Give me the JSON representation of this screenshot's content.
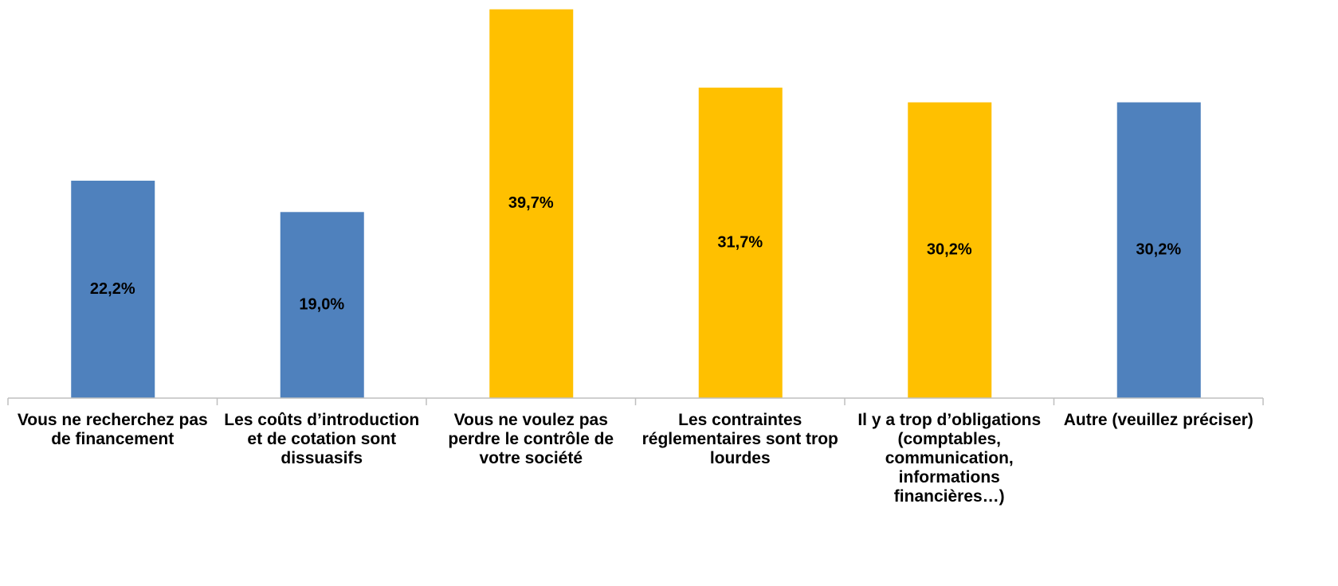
{
  "chart_data": {
    "type": "bar",
    "categories": [
      "Vous ne recherchez pas de financement",
      "Les coûts d’introduction et de cotation sont dissuasifs",
      "Vous ne voulez pas perdre le contrôle de votre société",
      "Les contraintes réglementaires sont trop lourdes",
      "Il y a trop d’obligations (comptables, communication, informations financières…)",
      "Autre (veuillez préciser)"
    ],
    "values": [
      22.2,
      19.0,
      39.7,
      31.7,
      30.2,
      30.2
    ],
    "value_labels": [
      "22,2%",
      "19,0%",
      "39,7%",
      "31,7%",
      "30,2%",
      "30,2%"
    ],
    "colors": [
      "#4f81bd",
      "#4f81bd",
      "#ffc000",
      "#ffc000",
      "#ffc000",
      "#4f81bd"
    ],
    "ylim": [
      0,
      40
    ]
  }
}
